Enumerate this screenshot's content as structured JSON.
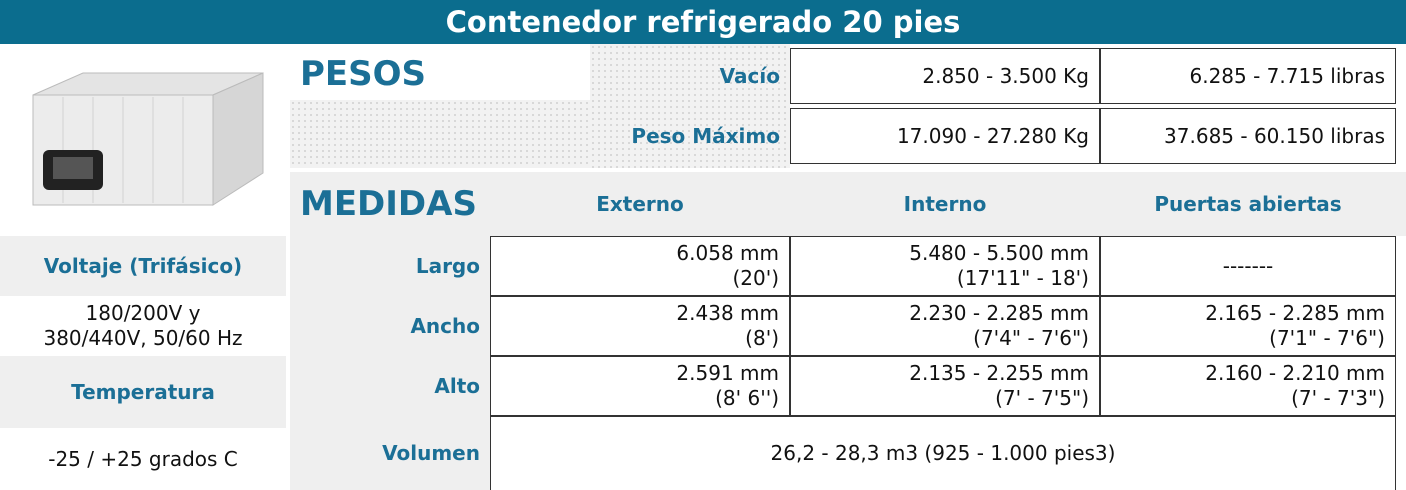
{
  "title": "Contenedor refrigerado 20 pies",
  "left_panel": {
    "voltage_label": "Voltaje (Trifásico)",
    "voltage_value": [
      "180/200V y",
      "380/440V, 50/60 Hz"
    ],
    "temperature_label": "Temperatura",
    "temperature_value": "-25 / +25 grados C"
  },
  "pesos": {
    "heading": "PESOS",
    "rows": [
      {
        "label": "Vacío",
        "cells": [
          "2.850 - 3.500  Kg",
          "6.285 - 7.715  libras"
        ]
      },
      {
        "label": "Peso Máximo",
        "cells": [
          "17.090 - 27.280 Kg",
          "37.685 - 60.150  libras"
        ]
      }
    ]
  },
  "medidas": {
    "heading": "MEDIDAS",
    "columns": [
      "Externo",
      "Interno",
      "Puertas abiertas"
    ],
    "rows": [
      {
        "label": "Largo",
        "cells": [
          [
            "6.058 mm",
            "(20')"
          ],
          [
            "5.480 - 5.500  mm",
            "(17'11\" - 18')"
          ],
          [
            "-------"
          ]
        ]
      },
      {
        "label": "Ancho",
        "cells": [
          [
            "2.438 mm",
            "(8')"
          ],
          [
            "2.230 - 2.285 mm",
            "(7'4\" - 7'6\")"
          ],
          [
            "2.165 - 2.285 mm",
            "(7'1\" - 7'6\")"
          ]
        ]
      },
      {
        "label": "Alto",
        "cells": [
          [
            "2.591 mm",
            "(8' 6'')"
          ],
          [
            "2.135 - 2.255  mm",
            "(7' - 7'5\")"
          ],
          [
            "2.160 - 2.210  mm",
            "(7' - 7'3\")"
          ]
        ]
      }
    ],
    "volume": {
      "label": "Volumen",
      "value": "26,2 - 28,3 m3  (925 - 1.000 pies3)"
    }
  }
}
